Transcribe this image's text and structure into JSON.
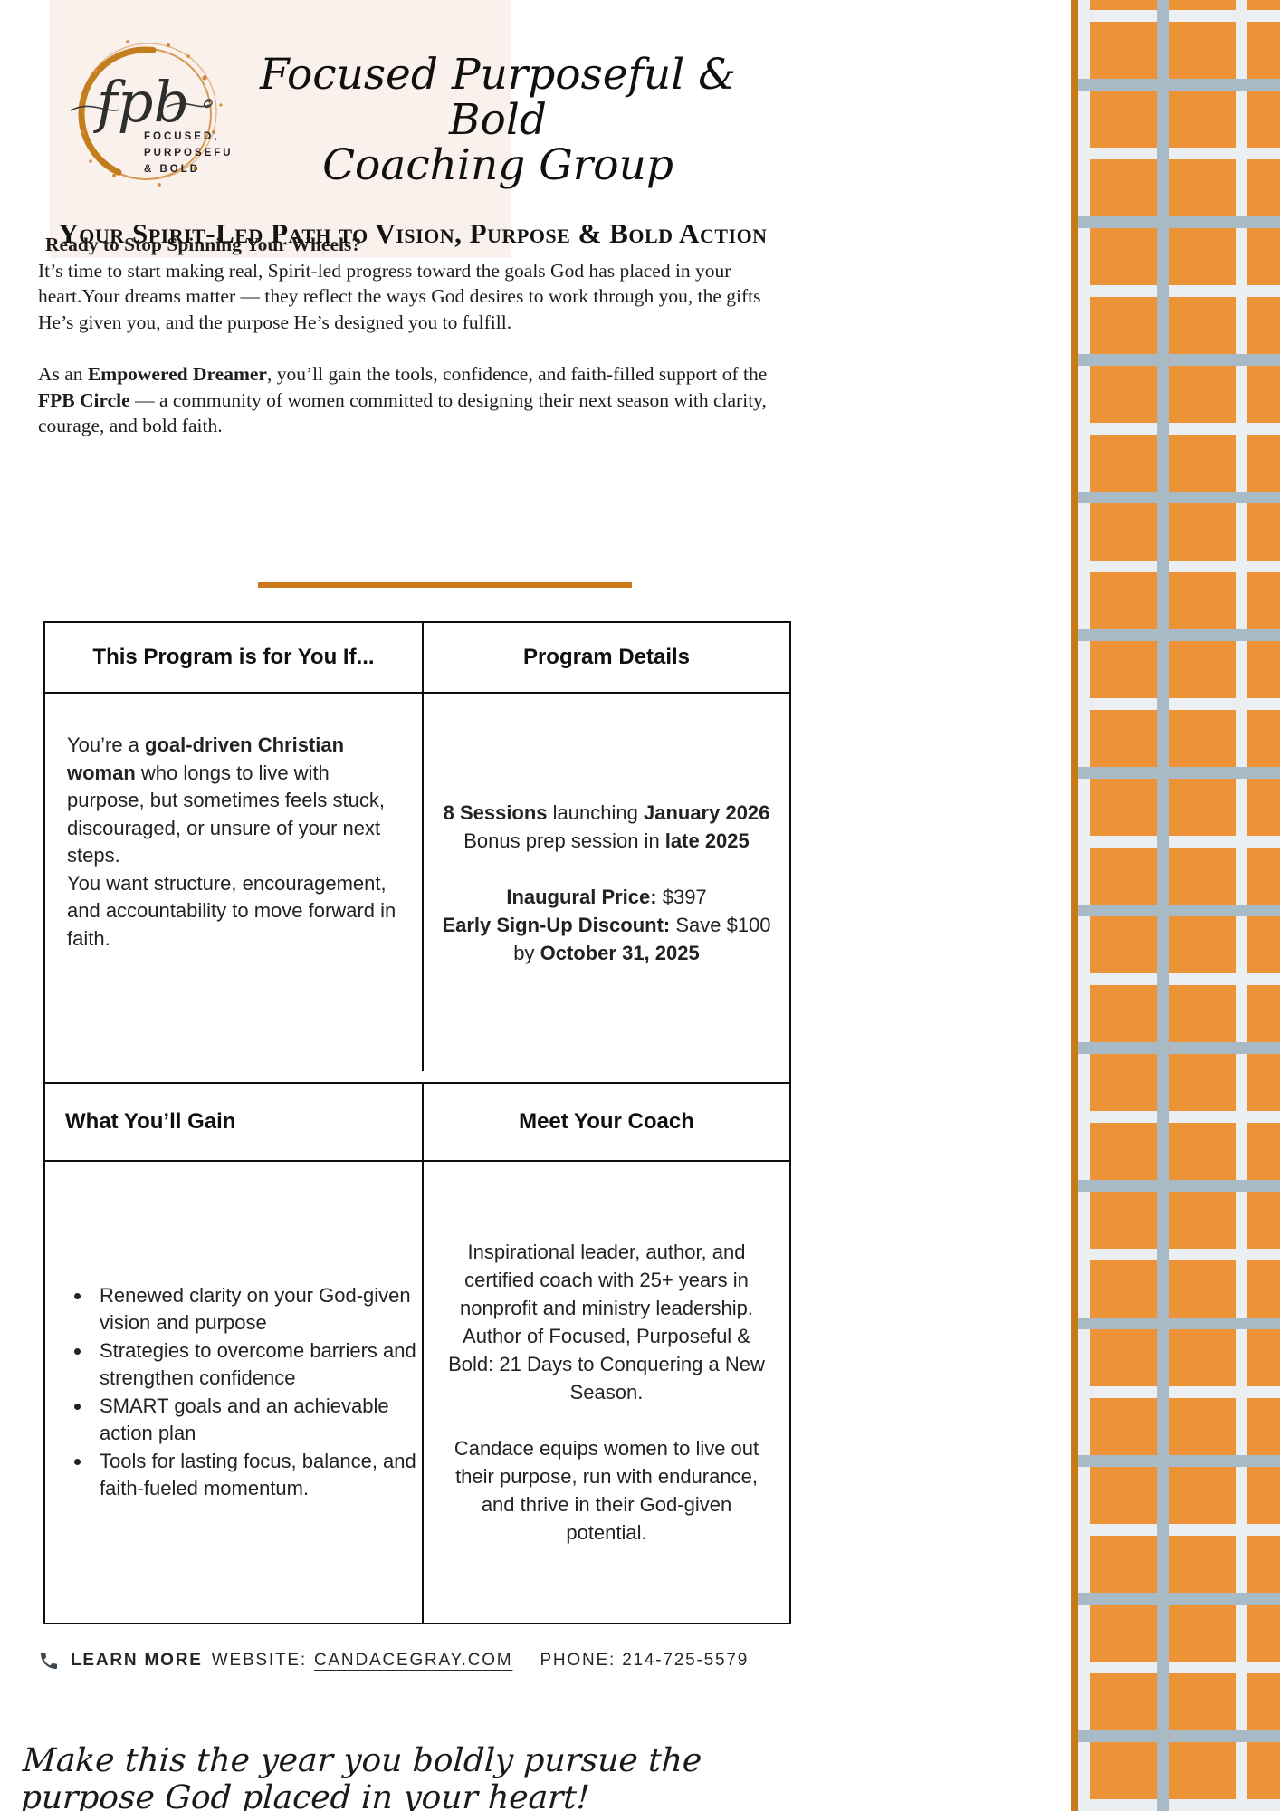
{
  "colors": {
    "accent_orange": "#C9791A",
    "tile_orange": "#EC9338",
    "tile_blue": "#A8BAC6",
    "pattern_background": "#ECEFF1",
    "header_pink": "#FAF1ED"
  },
  "logo": {
    "monogram": "fpb",
    "line1": "FOCUSED,",
    "line2": "PURPOSEFUL",
    "line3": "& BOLD"
  },
  "header": {
    "title_line1": "Focused Purposeful & Bold",
    "title_line2": "Coaching Group",
    "subtitle": "Your Spirit-Led Path to Vision, Purpose & Bold Action"
  },
  "intro": {
    "heading": "Ready to Stop Spinning Your Wheels?",
    "para1": "It’s time to start making real, Spirit-led progress toward the goals God has placed in your heart.Your dreams matter — they reflect the ways God desires to work through you, the gifts He’s given you, and the purpose He’s designed you to fulfill.",
    "para2": [
      {
        "text": "As an ",
        "bold": false
      },
      {
        "text": "Empowered Dreamer",
        "bold": true
      },
      {
        "text": ", you’ll gain the tools, confidence, and faith-filled support of the ",
        "bold": false
      },
      {
        "text": "FPB Circle",
        "bold": true
      },
      {
        "text": " — a community of women committed to designing their next season with clarity, courage, and bold faith.",
        "bold": false
      }
    ]
  },
  "table1": {
    "header_left": "This Program is for You If...",
    "header_right": "Program Details",
    "for_you": [
      {
        "text": "You’re a ",
        "bold": false
      },
      {
        "text": "goal-driven Christian woman",
        "bold": true
      },
      {
        "text": " who longs to live with purpose, but sometimes feels stuck, discouraged, or unsure of your next steps.\nYou want structure, encouragement, and accountability to move forward in faith.",
        "bold": false
      }
    ],
    "details": {
      "line1": [
        {
          "text": "8 Sessions",
          "bold": true
        },
        {
          "text": " launching ",
          "bold": false
        },
        {
          "text": "January 2026",
          "bold": true
        }
      ],
      "line2": [
        {
          "text": "Bonus prep session in ",
          "bold": false
        },
        {
          "text": "late 2025",
          "bold": true
        }
      ],
      "line3": [
        {
          "text": "Inaugural Price:",
          "bold": true
        },
        {
          "text": " $397",
          "bold": false
        }
      ],
      "line4": [
        {
          "text": "Early Sign-Up Discount:",
          "bold": true
        },
        {
          "text": " Save $100",
          "bold": false
        }
      ],
      "line5": [
        {
          "text": "by ",
          "bold": false
        },
        {
          "text": "October 31, 2025",
          "bold": true
        }
      ]
    }
  },
  "table2": {
    "header_left": "What You’ll Gain",
    "header_right": "Meet Your Coach",
    "gains": [
      "Renewed clarity on your God-given vision and purpose",
      "Strategies to overcome barriers and strengthen confidence",
      "SMART goals and an achievable action plan",
      "Tools for lasting focus, balance, and faith-fueled momentum."
    ],
    "coach_para1": "Inspirational leader, author, and certified coach with 25+ years in nonprofit and ministry leadership. Author of Focused, Purposeful & Bold: 21 Days to Conquering a New Season.",
    "coach_para2": "Candace equips women to live out their purpose, run with endurance, and thrive in their God-given potential."
  },
  "footer": {
    "learn_more": "LEARN MORE",
    "website_label": "WEBSITE:",
    "website": "CANDACEGRAY.COM",
    "phone_label": "PHONE:",
    "phone_number": "214-725-5579"
  },
  "tagline": "Make this the year you boldly pursue the purpose God placed in your heart!"
}
